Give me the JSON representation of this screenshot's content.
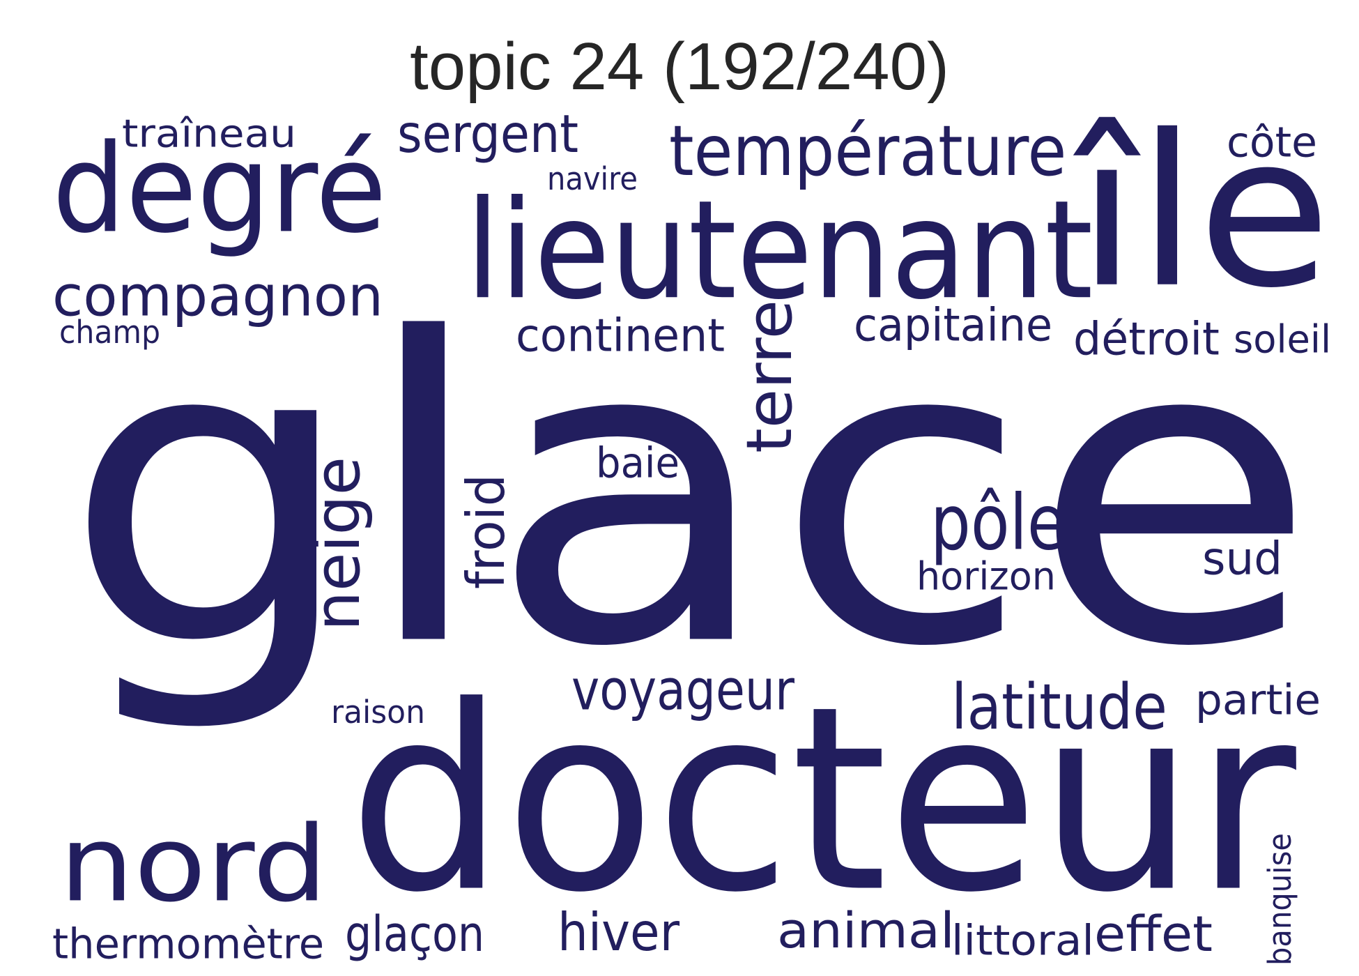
{
  "title": "topic 24 (192/240)",
  "word_color": "#221e5e",
  "words": [
    {
      "text": "glace",
      "weight": 1.0,
      "rotated": false
    },
    {
      "text": "docteur",
      "weight": 0.68,
      "rotated": false
    },
    {
      "text": "lieutenant",
      "weight": 0.5,
      "rotated": false
    },
    {
      "text": "île",
      "weight": 0.5,
      "rotated": false
    },
    {
      "text": "degré",
      "weight": 0.41,
      "rotated": false
    },
    {
      "text": "nord",
      "weight": 0.35,
      "rotated": false
    },
    {
      "text": "température",
      "weight": 0.2,
      "rotated": false
    },
    {
      "text": "terre",
      "weight": 0.17,
      "rotated": true
    },
    {
      "text": "neige",
      "weight": 0.17,
      "rotated": true
    },
    {
      "text": "pôle",
      "weight": 0.17,
      "rotated": false
    },
    {
      "text": "latitude",
      "weight": 0.16,
      "rotated": false
    },
    {
      "text": "compagnon",
      "weight": 0.15,
      "rotated": false
    },
    {
      "text": "voyageur",
      "weight": 0.13,
      "rotated": false
    },
    {
      "text": "animal",
      "weight": 0.13,
      "rotated": false
    },
    {
      "text": "sergent",
      "weight": 0.13,
      "rotated": false
    },
    {
      "text": "continent",
      "weight": 0.12,
      "rotated": false
    },
    {
      "text": "capitaine",
      "weight": 0.12,
      "rotated": false
    },
    {
      "text": "détroit",
      "weight": 0.12,
      "rotated": false
    },
    {
      "text": "froid",
      "weight": 0.12,
      "rotated": true
    },
    {
      "text": "glaçon",
      "weight": 0.12,
      "rotated": false
    },
    {
      "text": "hiver",
      "weight": 0.12,
      "rotated": false
    },
    {
      "text": "effet",
      "weight": 0.11,
      "rotated": false
    },
    {
      "text": "thermomètre",
      "weight": 0.1,
      "rotated": false
    },
    {
      "text": "horizon",
      "weight": 0.1,
      "rotated": false
    },
    {
      "text": "sud",
      "weight": 0.1,
      "rotated": false
    },
    {
      "text": "partie",
      "weight": 0.09,
      "rotated": false
    },
    {
      "text": "côte",
      "weight": 0.09,
      "rotated": false
    },
    {
      "text": "baie",
      "weight": 0.09,
      "rotated": false
    },
    {
      "text": "littoral",
      "weight": 0.09,
      "rotated": false
    },
    {
      "text": "traîneau",
      "weight": 0.08,
      "rotated": false
    },
    {
      "text": "soleil",
      "weight": 0.08,
      "rotated": false
    },
    {
      "text": "banquise",
      "weight": 0.06,
      "rotated": true
    },
    {
      "text": "champ",
      "weight": 0.06,
      "rotated": false
    },
    {
      "text": "raison",
      "weight": 0.06,
      "rotated": false
    },
    {
      "text": "navire",
      "weight": 0.06,
      "rotated": false
    }
  ]
}
